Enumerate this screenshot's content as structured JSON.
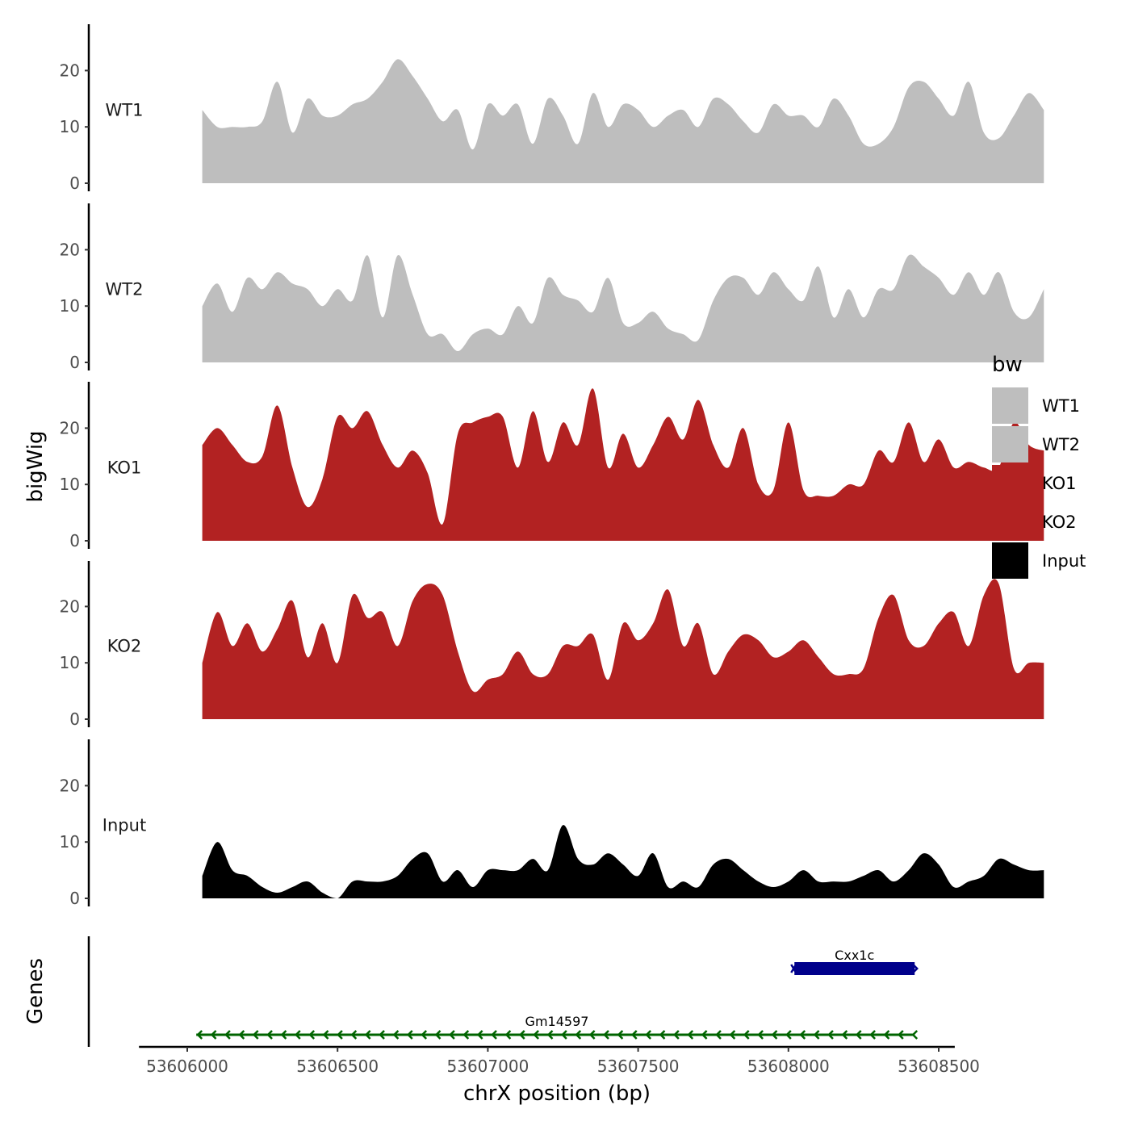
{
  "chart_data": {
    "type": "area",
    "title": "",
    "xlabel": "chrX position (bp)",
    "ylabel": "bigWig",
    "genes_ylabel": "Genes",
    "xlim": [
      53605920,
      53608540
    ],
    "ylim": [
      0,
      28
    ],
    "x_ticks": [
      53606000,
      53606500,
      53607000,
      53607500,
      53608000,
      53608500
    ],
    "x_tick_labels": [
      "53606000",
      "53606500",
      "53607000",
      "53607500",
      "53608000",
      "53608500"
    ],
    "y_ticks": [
      0,
      10,
      20
    ],
    "y_tick_labels": [
      "0",
      "10",
      "20"
    ],
    "legend": {
      "title": "bw",
      "position": "right",
      "entries": [
        {
          "label": "WT1",
          "color": "#bebebe"
        },
        {
          "label": "WT2",
          "color": "#bebebe"
        },
        {
          "label": "KO1",
          "color": "#b22222"
        },
        {
          "label": "KO2",
          "color": "#b22222"
        },
        {
          "label": "Input",
          "color": "#000000"
        }
      ]
    },
    "x_start": 53606050,
    "x_step": 50,
    "series": [
      {
        "name": "WT1",
        "color": "#bebebe",
        "values": [
          13,
          10,
          10,
          10,
          11,
          18,
          9,
          15,
          12,
          12,
          14,
          15,
          18,
          22,
          19,
          15,
          11,
          13,
          6,
          14,
          12,
          14,
          7,
          15,
          12,
          7,
          16,
          10,
          14,
          13,
          10,
          12,
          13,
          10,
          15,
          14,
          11,
          9,
          14,
          12,
          12,
          10,
          15,
          12,
          7,
          7,
          10,
          17,
          18,
          15,
          12,
          18,
          9,
          8,
          12,
          16,
          13
        ]
      },
      {
        "name": "WT2",
        "color": "#bebebe",
        "values": [
          10,
          14,
          9,
          15,
          13,
          16,
          14,
          13,
          10,
          13,
          11,
          19,
          8,
          19,
          12,
          5,
          5,
          2,
          5,
          6,
          5,
          10,
          7,
          15,
          12,
          11,
          9,
          15,
          7,
          7,
          9,
          6,
          5,
          4,
          11,
          15,
          15,
          12,
          16,
          13,
          11,
          17,
          8,
          13,
          8,
          13,
          13,
          19,
          17,
          15,
          12,
          16,
          12,
          16,
          9,
          8,
          13
        ]
      },
      {
        "name": "KO1",
        "color": "#b22222",
        "values": [
          17,
          20,
          17,
          14,
          15,
          24,
          13,
          6,
          11,
          22,
          20,
          23,
          17,
          13,
          16,
          12,
          3,
          19,
          21,
          22,
          22,
          13,
          23,
          14,
          21,
          17,
          27,
          13,
          19,
          13,
          17,
          22,
          18,
          25,
          17,
          13,
          20,
          10,
          9,
          21,
          9,
          8,
          8,
          10,
          10,
          16,
          14,
          21,
          14,
          18,
          13,
          14,
          13,
          13,
          21,
          17,
          16
        ]
      },
      {
        "name": "KO2",
        "color": "#b22222",
        "values": [
          10,
          19,
          13,
          17,
          12,
          16,
          21,
          11,
          17,
          10,
          22,
          18,
          19,
          13,
          21,
          24,
          22,
          12,
          5,
          7,
          8,
          12,
          8,
          8,
          13,
          13,
          15,
          7,
          17,
          14,
          17,
          23,
          13,
          17,
          8,
          12,
          15,
          14,
          11,
          12,
          14,
          11,
          8,
          8,
          9,
          18,
          22,
          14,
          13,
          17,
          19,
          13,
          22,
          24,
          9,
          10,
          10
        ]
      },
      {
        "name": "Input",
        "color": "#000000",
        "values": [
          4,
          10,
          5,
          4,
          2,
          1,
          2,
          3,
          1,
          0,
          3,
          3,
          3,
          4,
          7,
          8,
          3,
          5,
          2,
          5,
          5,
          5,
          7,
          5,
          13,
          7,
          6,
          8,
          6,
          4,
          8,
          2,
          3,
          2,
          6,
          7,
          5,
          3,
          2,
          3,
          5,
          3,
          3,
          3,
          4,
          5,
          3,
          5,
          8,
          6,
          2,
          3,
          4,
          7,
          6,
          5,
          5
        ]
      }
    ],
    "genes": [
      {
        "name": "Cxx1c",
        "start": 53608020,
        "end": 53608420,
        "strand": "+",
        "color": "#00008b"
      },
      {
        "name": "Gm14597",
        "start": 53606030,
        "end": 53608420,
        "strand": "-",
        "color": "#006400"
      }
    ]
  }
}
